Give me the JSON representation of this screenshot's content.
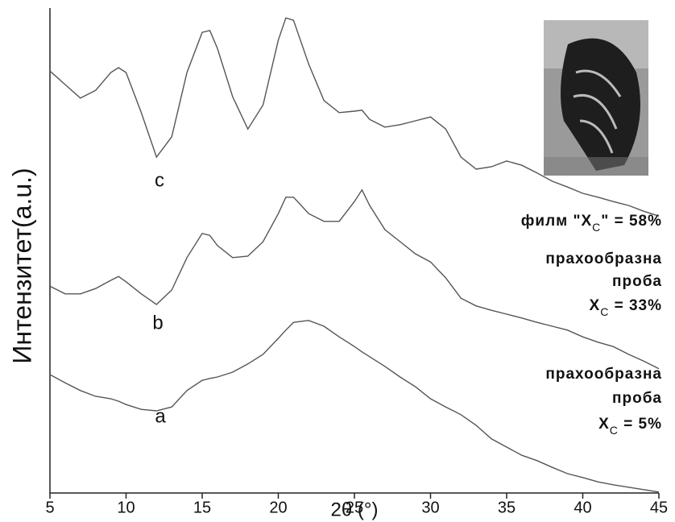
{
  "chart_data": {
    "type": "line",
    "x_label": "2θ (°)",
    "y_label": "Интензитет(a.u.)",
    "xlim": [
      5,
      45
    ],
    "xticks": [
      5,
      10,
      15,
      20,
      25,
      30,
      35,
      40,
      45
    ],
    "ylim": [
      0,
      100
    ],
    "x": [
      5,
      6,
      7,
      8,
      9,
      9.5,
      10,
      11,
      12,
      13,
      14,
      15,
      15.5,
      16,
      17,
      18,
      19,
      20,
      20.5,
      21,
      22,
      23,
      24,
      25,
      25.5,
      26,
      27,
      28,
      29,
      30,
      31,
      32,
      33,
      34,
      35,
      36,
      37,
      38,
      39,
      40,
      41,
      42,
      43,
      44,
      45
    ],
    "series": [
      {
        "name": "a",
        "color": "#555555",
        "values": [
          24.5,
          22.8,
          21.2,
          20,
          19.5,
          19,
          18.3,
          17.3,
          17,
          17.8,
          21.2,
          23.3,
          23.7,
          24,
          25,
          26.7,
          28.7,
          32,
          33.7,
          35.3,
          35.7,
          34.5,
          32.3,
          30.3,
          29.2,
          28.2,
          26.2,
          24,
          22,
          19.5,
          17.8,
          16.2,
          14,
          11.2,
          9.5,
          7.8,
          6.7,
          5.3,
          4,
          3.2,
          2.3,
          1.7,
          1.2,
          0.7,
          0.2
        ]
      },
      {
        "name": "b",
        "color": "#555555",
        "values": [
          42.8,
          41.2,
          41.2,
          42.3,
          44,
          44.8,
          43.7,
          41.2,
          39,
          42,
          48.7,
          53.7,
          53.3,
          51.2,
          48.7,
          49,
          52,
          57.8,
          61.2,
          61.2,
          57.8,
          56.2,
          56.2,
          60.3,
          62.7,
          59.5,
          54.5,
          52,
          49.5,
          47.8,
          44.5,
          40.3,
          38.7,
          37.8,
          37,
          36.2,
          35.3,
          34.5,
          33.7,
          32.3,
          31.2,
          30.3,
          28.7,
          27.3,
          25.7
        ]
      },
      {
        "name": "c",
        "color": "#555555",
        "values": [
          87.3,
          84.5,
          81.7,
          83.3,
          87,
          88,
          87,
          78.7,
          69.5,
          73.7,
          87,
          95.3,
          95.7,
          92,
          82,
          75.3,
          80.3,
          93.7,
          98.3,
          97.8,
          88.7,
          81.2,
          78.7,
          79,
          79.2,
          77.3,
          75.7,
          76.2,
          77,
          77.8,
          75.3,
          69.5,
          67,
          67.5,
          68.7,
          67.8,
          66.2,
          64.5,
          63.3,
          62,
          61.2,
          60.3,
          59.5,
          58.3,
          57.3
        ]
      }
    ],
    "annotations": [
      {
        "lines": [
          [
            {
              "text": "филм \"X"
            },
            {
              "text": "C",
              "subscript": true
            },
            {
              "text": "\" = 58%"
            }
          ]
        ]
      },
      {
        "lines": [
          [
            {
              "text": "прахообразна"
            }
          ],
          [
            {
              "text": "проба"
            }
          ],
          [
            {
              "text": "X"
            },
            {
              "text": "C",
              "subscript": true
            },
            {
              "text": " = 33%"
            }
          ]
        ]
      },
      {
        "lines": [
          [
            {
              "text": "прахообразна"
            }
          ],
          [
            {
              "text": "проба"
            }
          ],
          [
            {
              "text": "X"
            },
            {
              "text": "C",
              "subscript": true
            },
            {
              "text": " = 5%"
            }
          ]
        ]
      }
    ]
  }
}
